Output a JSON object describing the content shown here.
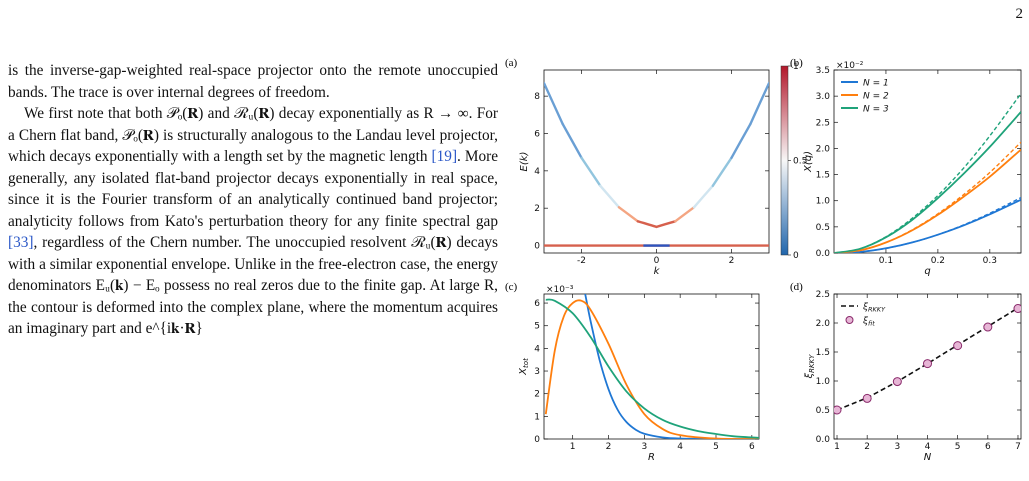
{
  "page": {
    "number": "2"
  },
  "body_text": {
    "p1": "is the inverse-gap-weighted real-space projector onto the remote unoccupied bands. The trace is over internal degrees of freedom.",
    "p2_a": "We first note that both 𝒫ₒ(𝐑) and ℛᵤ(𝐑) decay exponentially as R → ∞. For a Chern flat band, 𝒫ₒ(𝐑) is structurally analogous to the Landau level projector, which decays exponentially with a length set by the magnetic length ",
    "cite_19": "[19]",
    "p2_b": ". More generally, any isolated flat-band projector decays exponentially in real space, since it is the Fourier transform of an analytically continued band projector; analyticity follows from Kato's perturbation theory for any finite spectral gap ",
    "cite_33": "[33]",
    "p2_c": ", regardless of the Chern number. The unoccupied resolvent ℛᵤ(𝐑) decays with a similar exponential envelope. Unlike in the free-electron case, the energy denominators Eᵤ(𝐤) − Eₒ possess no real zeros due to the finite gap. At large R, the contour is deformed into the complex plane, where the momentum acquires an imaginary part and e^{i𝐤·𝐑}"
  },
  "figure": {
    "panel_labels": [
      "(a)",
      "(b)",
      "(c)",
      "(d)"
    ],
    "colorbar": {
      "ticks": [
        "1",
        "0.5",
        "0"
      ],
      "high_color": "#b2182b",
      "mid_color": "#f7f7f7",
      "low_color": "#2166ac"
    },
    "colors": {
      "N1": "#1f77d4",
      "N2": "#ff7f0e",
      "N3": "#1fa37a"
    }
  },
  "chart_data": [
    {
      "panel": "(a)",
      "type": "line",
      "xlabel": "k",
      "ylabel": "E(k)",
      "xlim": [
        -3,
        3
      ],
      "ylim": [
        -0.4,
        9.4
      ],
      "xticks": [
        -2,
        0,
        2
      ],
      "yticks": [
        0,
        2,
        4,
        6,
        8
      ],
      "series": [
        {
          "x": [
            -3,
            -2.5,
            -2,
            -1.5,
            -1,
            -0.5,
            0,
            0.5,
            1,
            1.5,
            2,
            2.5,
            3
          ],
          "values": [
            8.7,
            6.5,
            4.7,
            3.2,
            2.05,
            1.3,
            1.0,
            1.3,
            2.05,
            3.2,
            4.7,
            6.5,
            8.7
          ]
        },
        {
          "x": [
            -3,
            3
          ],
          "values": [
            0,
            0
          ]
        }
      ]
    },
    {
      "panel": "(b)",
      "type": "line",
      "xlabel": "q",
      "ylabel": "X(q)",
      "scale_label": "×10⁻²",
      "xlim": [
        0,
        0.36
      ],
      "ylim": [
        0,
        3.5
      ],
      "xticks": [
        0.1,
        0.2,
        0.3
      ],
      "yticks": [
        0.0,
        0.5,
        1.0,
        1.5,
        2.0,
        2.5,
        3.0,
        3.5
      ],
      "legend": "top-left",
      "series": [
        {
          "name": "N = 1",
          "x": [
            0,
            0.05,
            0.1,
            0.15,
            0.2,
            0.25,
            0.3,
            0.36
          ],
          "values": [
            0,
            0.02,
            0.09,
            0.2,
            0.35,
            0.53,
            0.74,
            1.02
          ]
        },
        {
          "name": "N = 2",
          "x": [
            0,
            0.05,
            0.1,
            0.15,
            0.2,
            0.25,
            0.3,
            0.36
          ],
          "values": [
            0,
            0.05,
            0.2,
            0.43,
            0.73,
            1.08,
            1.46,
            1.98
          ]
        },
        {
          "name": "N = 3",
          "x": [
            0,
            0.05,
            0.1,
            0.15,
            0.2,
            0.25,
            0.3,
            0.36
          ],
          "values": [
            0,
            0.08,
            0.3,
            0.63,
            1.05,
            1.52,
            2.03,
            2.7
          ]
        },
        {
          "x": [
            0,
            0.05,
            0.1,
            0.15,
            0.2,
            0.25,
            0.3,
            0.36
          ],
          "values": [
            0,
            0.02,
            0.09,
            0.2,
            0.35,
            0.54,
            0.76,
            1.06
          ]
        },
        {
          "x": [
            0,
            0.05,
            0.1,
            0.15,
            0.2,
            0.25,
            0.3,
            0.36
          ],
          "values": [
            0,
            0.05,
            0.2,
            0.44,
            0.75,
            1.12,
            1.54,
            2.12
          ]
        },
        {
          "x": [
            0,
            0.05,
            0.1,
            0.15,
            0.2,
            0.25,
            0.3,
            0.36
          ],
          "values": [
            0,
            0.08,
            0.31,
            0.66,
            1.1,
            1.63,
            2.24,
            3.05
          ]
        }
      ]
    },
    {
      "panel": "(c)",
      "type": "line",
      "xlabel": "R",
      "ylabel": "X_tot(R)",
      "scale_label": "×10⁻³",
      "xlim": [
        0.2,
        6.2
      ],
      "ylim": [
        0,
        6.4
      ],
      "xticks": [
        1,
        2,
        3,
        4,
        5,
        6
      ],
      "yticks": [
        0,
        1,
        2,
        3,
        4,
        5,
        6
      ],
      "series": [
        {
          "x": [
            1.35,
            1.5,
            1.75,
            2,
            2.25,
            2.5,
            2.75,
            3,
            3.5,
            4,
            5,
            6.2
          ],
          "values": [
            6.4,
            5.2,
            3.5,
            2.2,
            1.3,
            0.75,
            0.42,
            0.23,
            0.07,
            0.02,
            0.0,
            0.0
          ]
        },
        {
          "x": [
            0.25,
            0.5,
            0.75,
            1,
            1.25,
            1.5,
            2,
            2.5,
            3,
            3.5,
            4,
            5,
            6.2
          ],
          "values": [
            1.1,
            3.9,
            5.4,
            6.0,
            6.1,
            5.7,
            4.2,
            2.4,
            1.1,
            0.45,
            0.17,
            0.02,
            0.0
          ]
        },
        {
          "x": [
            0.25,
            0.5,
            1,
            1.5,
            2,
            2.5,
            3,
            3.5,
            4,
            4.5,
            5,
            5.5,
            6.2
          ],
          "values": [
            6.15,
            6.1,
            5.55,
            4.5,
            3.2,
            2.1,
            1.35,
            0.85,
            0.55,
            0.35,
            0.22,
            0.12,
            0.05
          ]
        }
      ]
    },
    {
      "panel": "(d)",
      "type": "scatter",
      "xlabel": "N",
      "ylabel": "ξ_RKKY",
      "xlim": [
        0.9,
        7.1
      ],
      "ylim": [
        0.0,
        2.5
      ],
      "xticks": [
        1,
        2,
        3,
        4,
        5,
        6,
        7
      ],
      "yticks": [
        0.0,
        0.5,
        1.0,
        1.5,
        2.0,
        2.5
      ],
      "legend": "top-left",
      "series": [
        {
          "name": "ξ_RKKY",
          "x": [
            1,
            2,
            3,
            4,
            5,
            6,
            7
          ],
          "values": [
            0.5,
            0.71,
            0.99,
            1.3,
            1.62,
            1.94,
            2.26
          ]
        },
        {
          "name": "ξ_fit",
          "x": [
            1,
            2,
            3,
            4,
            5,
            6,
            7
          ],
          "values": [
            0.5,
            0.7,
            0.99,
            1.3,
            1.61,
            1.93,
            2.25
          ]
        }
      ]
    }
  ]
}
